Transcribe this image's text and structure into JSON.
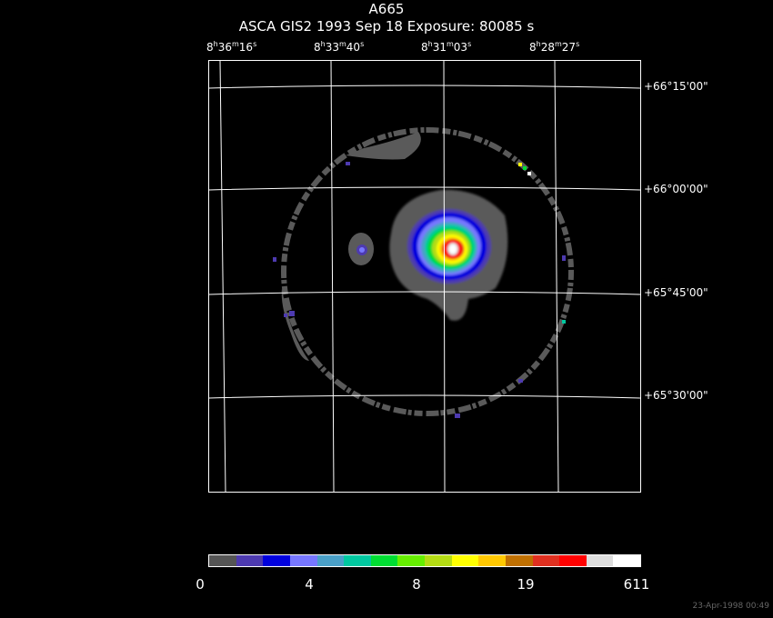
{
  "header": {
    "object": "A665",
    "info": "ASCA GIS2   1993 Sep 18    Exposure: 80085 s"
  },
  "ra_ticks": [
    {
      "h": "8",
      "m": "36",
      "s": "16"
    },
    {
      "h": "8",
      "m": "33",
      "s": "40"
    },
    {
      "h": "8",
      "m": "31",
      "s": "03"
    },
    {
      "h": "8",
      "m": "28",
      "s": "27"
    }
  ],
  "dec_ticks": [
    "+66°15'00\"",
    "+66°00'00\"",
    "+65°45'00\"",
    "+65°30'00\""
  ],
  "colorbar": {
    "colors": [
      "#555555",
      "#4d3ab0",
      "#0000dd",
      "#7777ff",
      "#4aa0c8",
      "#00c8a0",
      "#00dd33",
      "#66ee00",
      "#b4dc14",
      "#ffff00",
      "#ffc800",
      "#c07000",
      "#e03020",
      "#ff0000",
      "#dddddd",
      "#ffffff"
    ],
    "labels": [
      "0",
      "4",
      "8",
      "19",
      "611"
    ]
  },
  "footer": {
    "timestamp": "23-Apr-1998 00:49"
  }
}
